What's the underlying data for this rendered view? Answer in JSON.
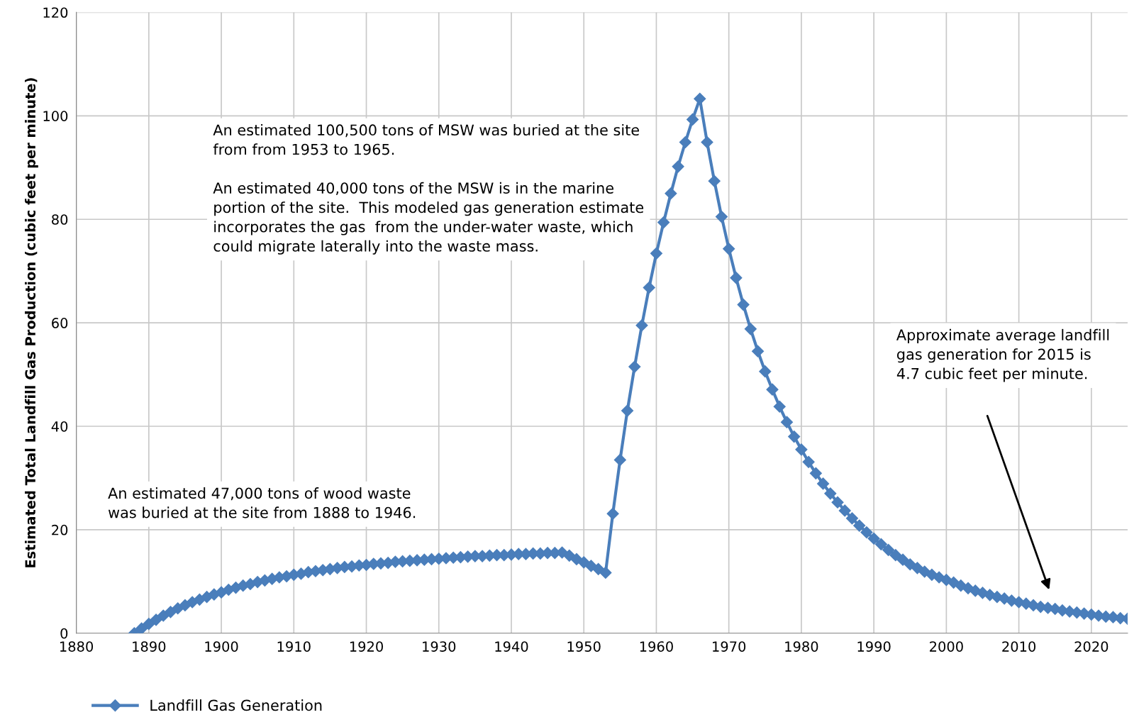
{
  "chart_data": {
    "type": "line",
    "ylabel": "Estimated Total Landfill Gas Production (cubic feet per minute)",
    "x": [
      1888,
      1889,
      1890,
      1891,
      1892,
      1893,
      1894,
      1895,
      1896,
      1897,
      1898,
      1899,
      1900,
      1901,
      1902,
      1903,
      1904,
      1905,
      1906,
      1907,
      1908,
      1909,
      1910,
      1911,
      1912,
      1913,
      1914,
      1915,
      1916,
      1917,
      1918,
      1919,
      1920,
      1921,
      1922,
      1923,
      1924,
      1925,
      1926,
      1927,
      1928,
      1929,
      1930,
      1931,
      1932,
      1933,
      1934,
      1935,
      1936,
      1937,
      1938,
      1939,
      1940,
      1941,
      1942,
      1943,
      1944,
      1945,
      1946,
      1947,
      1948,
      1949,
      1950,
      1951,
      1952,
      1953,
      1954,
      1955,
      1956,
      1957,
      1958,
      1959,
      1960,
      1961,
      1962,
      1963,
      1964,
      1965,
      1966,
      1967,
      1968,
      1969,
      1970,
      1971,
      1972,
      1973,
      1974,
      1975,
      1976,
      1977,
      1978,
      1979,
      1980,
      1981,
      1982,
      1983,
      1984,
      1985,
      1986,
      1987,
      1988,
      1989,
      1990,
      1991,
      1992,
      1993,
      1994,
      1995,
      1996,
      1997,
      1998,
      1999,
      2000,
      2001,
      2002,
      2003,
      2004,
      2005,
      2006,
      2007,
      2008,
      2009,
      2010,
      2011,
      2012,
      2013,
      2014,
      2015,
      2016,
      2017,
      2018,
      2019,
      2020,
      2021,
      2022,
      2023,
      2024,
      2025
    ],
    "series": [
      {
        "name": "Landfill Gas Generation",
        "color": "#4a7ebb",
        "values": [
          0,
          0.9,
          1.8,
          2.6,
          3.4,
          4.1,
          4.8,
          5.4,
          6.0,
          6.5,
          7.0,
          7.5,
          7.9,
          8.4,
          8.8,
          9.2,
          9.5,
          9.9,
          10.2,
          10.5,
          10.8,
          11.0,
          11.3,
          11.5,
          11.8,
          12.0,
          12.2,
          12.4,
          12.6,
          12.8,
          12.9,
          13.1,
          13.2,
          13.4,
          13.5,
          13.6,
          13.8,
          13.9,
          14.0,
          14.1,
          14.2,
          14.3,
          14.4,
          14.5,
          14.6,
          14.7,
          14.8,
          14.9,
          14.9,
          15.0,
          15.1,
          15.1,
          15.2,
          15.3,
          15.3,
          15.4,
          15.4,
          15.5,
          15.5,
          15.6,
          15.0,
          14.3,
          13.7,
          13.0,
          12.4,
          11.7,
          23.1,
          33.5,
          43.0,
          51.5,
          59.5,
          66.8,
          73.4,
          79.4,
          85.0,
          90.2,
          94.9,
          99.3,
          103.3,
          94.9,
          87.4,
          80.5,
          74.3,
          68.7,
          63.5,
          58.8,
          54.5,
          50.6,
          47.1,
          43.8,
          40.8,
          38.0,
          35.5,
          33.1,
          30.9,
          28.9,
          27.0,
          25.3,
          23.7,
          22.2,
          20.8,
          19.5,
          18.3,
          17.2,
          16.1,
          15.1,
          14.2,
          13.3,
          12.6,
          11.9,
          11.3,
          10.8,
          10.3,
          9.8,
          9.2,
          8.7,
          8.2,
          7.8,
          7.4,
          7.0,
          6.7,
          6.3,
          6.0,
          5.7,
          5.4,
          5.1,
          4.9,
          4.7,
          4.4,
          4.2,
          4.0,
          3.8,
          3.6,
          3.4,
          3.2,
          3.1,
          2.9,
          2.8
        ]
      }
    ],
    "xlim": [
      1880,
      2025
    ],
    "xticks": [
      1880,
      1890,
      1900,
      1910,
      1920,
      1930,
      1940,
      1950,
      1960,
      1970,
      1980,
      1990,
      2000,
      2010,
      2020
    ],
    "ylim": [
      0,
      120
    ],
    "yticks": [
      0,
      20,
      40,
      60,
      80,
      100,
      120
    ],
    "grid": true,
    "legend": "bottom left",
    "marker": "diamond",
    "line_style": "solid",
    "annotations": [
      "An estimated 100,500 tons of MSW was buried at the site\nfrom from 1953 to 1965.\n\nAn estimated 40,000 tons of the MSW is in the marine\nportion of the site.  This modeled gas generation estimate\nincorporates the gas  from the under-water waste, which\ncould migrate laterally into the waste mass.",
      "An estimated 47,000 tons of wood waste\nwas buried at the site from 1888 to 1946.",
      "Approximate average landfill\ngas generation for 2015 is\n4.7 cubic feet per minute."
    ]
  }
}
